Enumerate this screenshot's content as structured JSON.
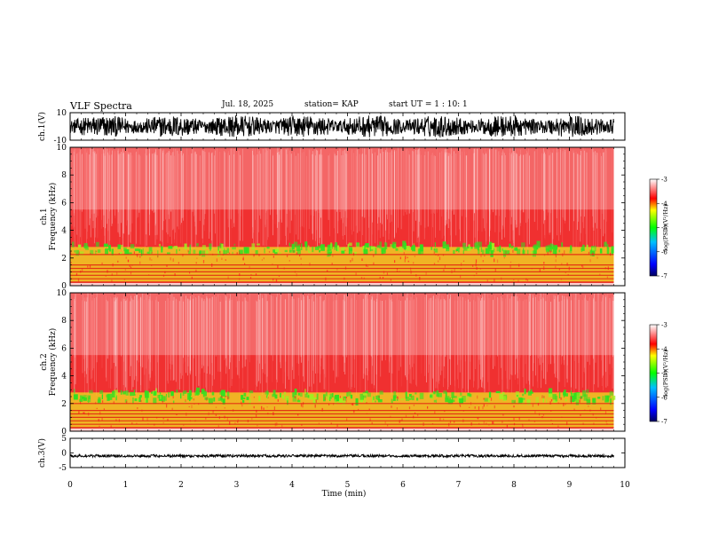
{
  "header": {
    "title": "VLF Spectra",
    "date": "Jul. 18, 2025",
    "station": "station= KAP",
    "start": "start UT =  1 : 10: 1"
  },
  "colors": {
    "spectrum_stops": [
      "#000080",
      "#0000ff",
      "#00ff00",
      "#ffff00",
      "#ff0000",
      "#ffffff"
    ],
    "trace": "#000000"
  },
  "chart_data": [
    {
      "type": "line",
      "id": "ch1-waveform",
      "ylabel": "ch.1(V)",
      "ylim": [
        -10,
        10
      ],
      "yticks": [
        "10",
        "-10"
      ],
      "xlim": [
        0,
        10
      ],
      "series": [
        {
          "name": "ch.1",
          "amplitude_range": [
            -8,
            8
          ],
          "offset": 0
        }
      ]
    },
    {
      "type": "heatmap",
      "id": "ch1-spectrogram",
      "ylabel": "ch.1\nFrequency (kHz)",
      "ylim": [
        0,
        10
      ],
      "yticks": [
        "0",
        "2",
        "4",
        "6",
        "8",
        "10"
      ],
      "xlim": [
        0,
        9.8
      ],
      "lines_khz": [
        0.25,
        0.5,
        0.75,
        1.0,
        1.25,
        1.5,
        2.25
      ],
      "green_band_khz": [
        2.3,
        3.0
      ],
      "colorbar": {
        "label": "log(PSD)(V²/Hz)",
        "range": [
          -7,
          -3
        ],
        "ticks": [
          "-3",
          "-4",
          "-5",
          "-6",
          "-7"
        ]
      }
    },
    {
      "type": "heatmap",
      "id": "ch2-spectrogram",
      "ylabel": "ch.2\nFrequency (kHz)",
      "ylim": [
        0,
        10
      ],
      "yticks": [
        "0",
        "2",
        "4",
        "6",
        "8",
        "10"
      ],
      "xlim": [
        0,
        9.8
      ],
      "lines_khz": [
        0.25,
        0.5,
        0.75,
        1.0,
        1.25,
        1.5,
        2.0
      ],
      "green_band_khz": [
        2.1,
        2.9
      ],
      "colorbar": {
        "label": "log(PSD)(V²/Hz)",
        "range": [
          -7,
          -3
        ],
        "ticks": [
          "-3",
          "-4",
          "-5",
          "-6",
          "-7"
        ]
      }
    },
    {
      "type": "line",
      "id": "ch3-waveform",
      "ylabel": "ch.3(V)",
      "ylim": [
        -5,
        5
      ],
      "yticks": [
        "5",
        "0",
        "-5"
      ],
      "xlim": [
        0,
        10
      ],
      "series": [
        {
          "name": "ch.3",
          "amplitude_range": [
            -1,
            1
          ],
          "offset": -1
        }
      ]
    }
  ],
  "xaxis": {
    "label": "Time (min)",
    "range": [
      0,
      10
    ],
    "ticks": [
      "0",
      "1",
      "2",
      "3",
      "4",
      "5",
      "6",
      "7",
      "8",
      "9",
      "10"
    ]
  }
}
